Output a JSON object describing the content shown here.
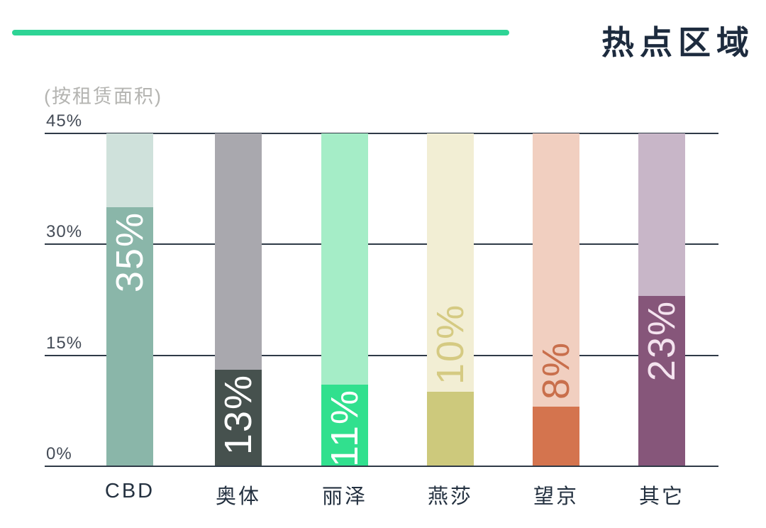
{
  "accent": {
    "color": "#2ed495"
  },
  "header": {
    "title": "热点区域"
  },
  "chart_data": {
    "type": "bar",
    "title": "热点区域",
    "subtitle": "(按租赁面积)",
    "categories": [
      "CBD",
      "奥体",
      "丽泽",
      "燕莎",
      "望京",
      "其它"
    ],
    "values": [
      35,
      13,
      11,
      10,
      8,
      23
    ],
    "value_labels": [
      "35%",
      "13%",
      "11%",
      "10%",
      "8%",
      "23%"
    ],
    "xlabel": "",
    "ylabel": "",
    "ylim": [
      0,
      45
    ],
    "ytick_labels": [
      "45%",
      "30%",
      "15%",
      "0%"
    ],
    "ytick_values": [
      45,
      30,
      15,
      0
    ],
    "grid": true,
    "legend": false,
    "bar_fill_colors": [
      "#8ab6a9",
      "#46514e",
      "#31e08e",
      "#cdc97c",
      "#d4744e",
      "#86567a"
    ],
    "bar_track_colors": [
      "#cfe1db",
      "#a9a8ae",
      "#a5edc7",
      "#f2eed4",
      "#f1cfc0",
      "#c8b6c8"
    ],
    "value_label_colors": [
      "#ffffff",
      "#ffffff",
      "#ffffff",
      "#d5ca82",
      "#c96f4c",
      "#f4e3ef"
    ],
    "value_label_placement": [
      "inside",
      "inside",
      "inside",
      "above",
      "above",
      "inside"
    ]
  }
}
